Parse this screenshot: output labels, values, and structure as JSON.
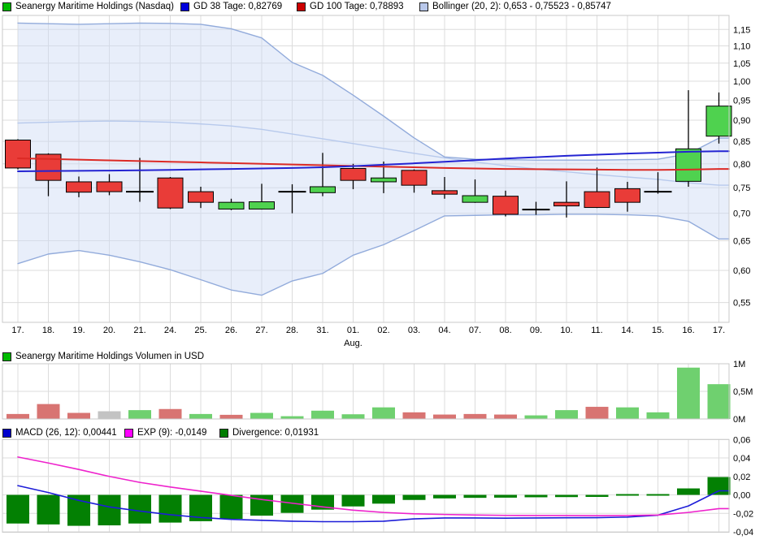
{
  "colors": {
    "candle_up": "#4fd24f",
    "candle_down": "#e93c38",
    "candle_outline": "#000000",
    "doji": "#000000",
    "volume_up": "#6fd06f",
    "volume_down": "#d87472",
    "volume_neutral": "#c3c3c3",
    "gd38_line": "#2424d2",
    "gd100_line": "#dc2a25",
    "bollinger_line": "#92abdb",
    "bollinger_mid_line": "#b7c9ec",
    "bollinger_fill": "rgba(205,218,245,0.45)",
    "macd_line": "#1d1dd8",
    "signal_line": "#ee22cc",
    "divergence_bar": "#038003",
    "grid": "#dcdcdc",
    "border": "#c9c9c9",
    "text": "#000000"
  },
  "legends": {
    "price": [
      {
        "label": "Seanergy Maritime Holdings (Nasdaq)",
        "color": "#00bb00"
      },
      {
        "label": "GD 38 Tage: 0,82769",
        "color": "#0000dd"
      },
      {
        "label": "GD 100 Tage: 0,78893",
        "color": "#cc0000"
      },
      {
        "label": "Bollinger (20, 2): 0,653 - 0,75523 - 0,85747",
        "color": "#b9c8ea"
      }
    ],
    "volume": [
      {
        "label": "Seanergy Maritime Holdings Volumen in USD",
        "color": "#00bb00"
      }
    ],
    "macd": [
      {
        "label": "MACD (26, 12): 0,00441",
        "color": "#0000cc"
      },
      {
        "label": "EXP (9): -0,0149",
        "color": "#ff00ff"
      },
      {
        "label": "Divergence: 0,01931",
        "color": "#007d00"
      }
    ]
  },
  "chart_data": [
    {
      "type": "candlestick",
      "title": "Seanergy Maritime Holdings (Nasdaq)",
      "y_scale": "log",
      "ylim": [
        0.53,
        1.18
      ],
      "grid": true,
      "legend_position": "top",
      "categories": [
        "17.",
        "18.",
        "19.",
        "20.",
        "21.",
        "24.",
        "25.",
        "26.",
        "27.",
        "28.",
        "31.",
        "01.",
        "02.",
        "03.",
        "04.",
        "07.",
        "08.",
        "09.",
        "10.",
        "11.",
        "14.",
        "15.",
        "16.",
        "17."
      ],
      "month_label": {
        "index": 11,
        "label": "Aug."
      },
      "y_ticks": [
        {
          "v": 1.15,
          "label": "1,15"
        },
        {
          "v": 1.1,
          "label": "1,10"
        },
        {
          "v": 1.05,
          "label": "1,05"
        },
        {
          "v": 1.0,
          "label": "1,00"
        },
        {
          "v": 0.95,
          "label": "0,95"
        },
        {
          "v": 0.9,
          "label": "0,90"
        },
        {
          "v": 0.85,
          "label": "0,85"
        },
        {
          "v": 0.8,
          "label": "0,80"
        },
        {
          "v": 0.75,
          "label": "0,75"
        },
        {
          "v": 0.7,
          "label": "0,70"
        },
        {
          "v": 0.65,
          "label": "0,65"
        },
        {
          "v": 0.6,
          "label": "0,60"
        },
        {
          "v": 0.55,
          "label": "0,55"
        }
      ],
      "candles": [
        {
          "date": "17.",
          "o": 0.853,
          "h": 0.855,
          "l": 0.788,
          "c": 0.791
        },
        {
          "date": "18.",
          "o": 0.821,
          "h": 0.823,
          "l": 0.733,
          "c": 0.765
        },
        {
          "date": "19.",
          "o": 0.762,
          "h": 0.773,
          "l": 0.731,
          "c": 0.741
        },
        {
          "date": "20.",
          "o": 0.762,
          "h": 0.778,
          "l": 0.735,
          "c": 0.742
        },
        {
          "date": "21.",
          "o": 0.742,
          "h": 0.813,
          "l": 0.722,
          "c": 0.742
        },
        {
          "date": "24.",
          "o": 0.77,
          "h": 0.772,
          "l": 0.708,
          "c": 0.71
        },
        {
          "date": "25.",
          "o": 0.742,
          "h": 0.752,
          "l": 0.71,
          "c": 0.721
        },
        {
          "date": "26.",
          "o": 0.708,
          "h": 0.728,
          "l": 0.706,
          "c": 0.721
        },
        {
          "date": "27.",
          "o": 0.708,
          "h": 0.758,
          "l": 0.707,
          "c": 0.722
        },
        {
          "date": "28.",
          "o": 0.742,
          "h": 0.757,
          "l": 0.7,
          "c": 0.742
        },
        {
          "date": "31.",
          "o": 0.74,
          "h": 0.824,
          "l": 0.733,
          "c": 0.752
        },
        {
          "date": "01.",
          "o": 0.79,
          "h": 0.8,
          "l": 0.747,
          "c": 0.765
        },
        {
          "date": "02.",
          "o": 0.762,
          "h": 0.805,
          "l": 0.739,
          "c": 0.77
        },
        {
          "date": "03.",
          "o": 0.786,
          "h": 0.788,
          "l": 0.74,
          "c": 0.755
        },
        {
          "date": "04.",
          "o": 0.744,
          "h": 0.772,
          "l": 0.728,
          "c": 0.737
        },
        {
          "date": "07.",
          "o": 0.721,
          "h": 0.767,
          "l": 0.72,
          "c": 0.734
        },
        {
          "date": "08.",
          "o": 0.733,
          "h": 0.744,
          "l": 0.694,
          "c": 0.698
        },
        {
          "date": "09.",
          "o": 0.707,
          "h": 0.722,
          "l": 0.697,
          "c": 0.707
        },
        {
          "date": "10.",
          "o": 0.721,
          "h": 0.763,
          "l": 0.692,
          "c": 0.714
        },
        {
          "date": "11.",
          "o": 0.742,
          "h": 0.792,
          "l": 0.71,
          "c": 0.711
        },
        {
          "date": "14.",
          "o": 0.748,
          "h": 0.762,
          "l": 0.703,
          "c": 0.721
        },
        {
          "date": "15.",
          "o": 0.742,
          "h": 0.782,
          "l": 0.738,
          "c": 0.742
        },
        {
          "date": "16.",
          "o": 0.763,
          "h": 0.976,
          "l": 0.752,
          "c": 0.833
        },
        {
          "date": "17.",
          "o": 0.862,
          "h": 0.97,
          "l": 0.845,
          "c": 0.935
        }
      ],
      "overlays": {
        "gd38": [
          0.784,
          0.7845,
          0.785,
          0.7855,
          0.786,
          0.787,
          0.788,
          0.789,
          0.79,
          0.791,
          0.7925,
          0.795,
          0.798,
          0.801,
          0.8045,
          0.808,
          0.8115,
          0.8145,
          0.8175,
          0.82,
          0.8225,
          0.8245,
          0.8265,
          0.8277
        ],
        "gd100": [
          0.812,
          0.8105,
          0.809,
          0.8075,
          0.806,
          0.8045,
          0.803,
          0.8015,
          0.8,
          0.7985,
          0.797,
          0.7955,
          0.794,
          0.7925,
          0.791,
          0.79,
          0.789,
          0.7885,
          0.788,
          0.7875,
          0.787,
          0.787,
          0.7875,
          0.7889
        ],
        "bollinger_upper": [
          1.17,
          1.168,
          1.166,
          1.168,
          1.17,
          1.169,
          1.166,
          1.152,
          1.124,
          1.052,
          1.016,
          0.963,
          0.91,
          0.858,
          0.815,
          0.81,
          0.809,
          0.808,
          0.808,
          0.808,
          0.809,
          0.81,
          0.822,
          0.8575
        ],
        "bollinger_middle": [
          0.893,
          0.895,
          0.897,
          0.898,
          0.897,
          0.895,
          0.891,
          0.886,
          0.878,
          0.867,
          0.856,
          0.845,
          0.834,
          0.823,
          0.813,
          0.804,
          0.796,
          0.789,
          0.783,
          0.777,
          0.772,
          0.767,
          0.76,
          0.7552
        ],
        "bollinger_lower": [
          0.611,
          0.627,
          0.633,
          0.625,
          0.614,
          0.601,
          0.585,
          0.569,
          0.561,
          0.583,
          0.595,
          0.625,
          0.643,
          0.668,
          0.695,
          0.696,
          0.697,
          0.697,
          0.698,
          0.698,
          0.697,
          0.695,
          0.685,
          0.653
        ]
      }
    },
    {
      "type": "bar",
      "title": "Seanergy Maritime Holdings Volumen in USD",
      "unit": "millions USD",
      "ylim": [
        0,
        1.05
      ],
      "y_ticks": [
        {
          "v": 1,
          "label": "1M"
        },
        {
          "v": 0.5,
          "label": "0,5M"
        },
        {
          "v": 0,
          "label": "0M"
        }
      ],
      "values": [
        0.09,
        0.27,
        0.11,
        0.14,
        0.16,
        0.18,
        0.09,
        0.075,
        0.11,
        0.05,
        0.15,
        0.085,
        0.21,
        0.12,
        0.08,
        0.09,
        0.08,
        0.065,
        0.16,
        0.22,
        0.21,
        0.12,
        0.93,
        0.63
      ],
      "bar_colors": [
        "down",
        "down",
        "down",
        "neutral",
        "up",
        "down",
        "up",
        "down",
        "up",
        "up",
        "up",
        "up",
        "up",
        "down",
        "down",
        "down",
        "down",
        "up",
        "up",
        "down",
        "up",
        "up",
        "up",
        "up"
      ]
    },
    {
      "type": "macd",
      "title": "MACD (26, 12)",
      "ylim": [
        -0.045,
        0.065
      ],
      "y_ticks": [
        {
          "v": 0.06,
          "label": "0,06"
        },
        {
          "v": 0.04,
          "label": "0,04"
        },
        {
          "v": 0.02,
          "label": "0,02"
        },
        {
          "v": 0.0,
          "label": "0,00"
        },
        {
          "v": -0.02,
          "label": "-0,02"
        },
        {
          "v": -0.04,
          "label": "-0,04"
        }
      ],
      "macd": [
        0.01,
        0.0025,
        -0.006,
        -0.013,
        -0.0175,
        -0.0215,
        -0.0245,
        -0.0265,
        -0.0275,
        -0.0285,
        -0.029,
        -0.029,
        -0.0285,
        -0.026,
        -0.025,
        -0.025,
        -0.0252,
        -0.025,
        -0.0248,
        -0.0247,
        -0.024,
        -0.022,
        -0.012,
        0.0044
      ],
      "signal": [
        0.041,
        0.0345,
        0.0275,
        0.02,
        0.0135,
        0.0085,
        0.004,
        -0.0005,
        -0.005,
        -0.009,
        -0.013,
        -0.0165,
        -0.019,
        -0.0205,
        -0.0212,
        -0.0218,
        -0.0222,
        -0.0224,
        -0.0224,
        -0.0225,
        -0.0223,
        -0.0218,
        -0.019,
        -0.0149
      ],
      "divergence": [
        -0.031,
        -0.032,
        -0.0335,
        -0.033,
        -0.031,
        -0.03,
        -0.0285,
        -0.026,
        -0.0225,
        -0.0195,
        -0.016,
        -0.0125,
        -0.0095,
        -0.0055,
        -0.0038,
        -0.0032,
        -0.003,
        -0.0026,
        -0.0024,
        -0.0022,
        -0.0017,
        -0.0002,
        0.007,
        0.0193
      ]
    }
  ]
}
